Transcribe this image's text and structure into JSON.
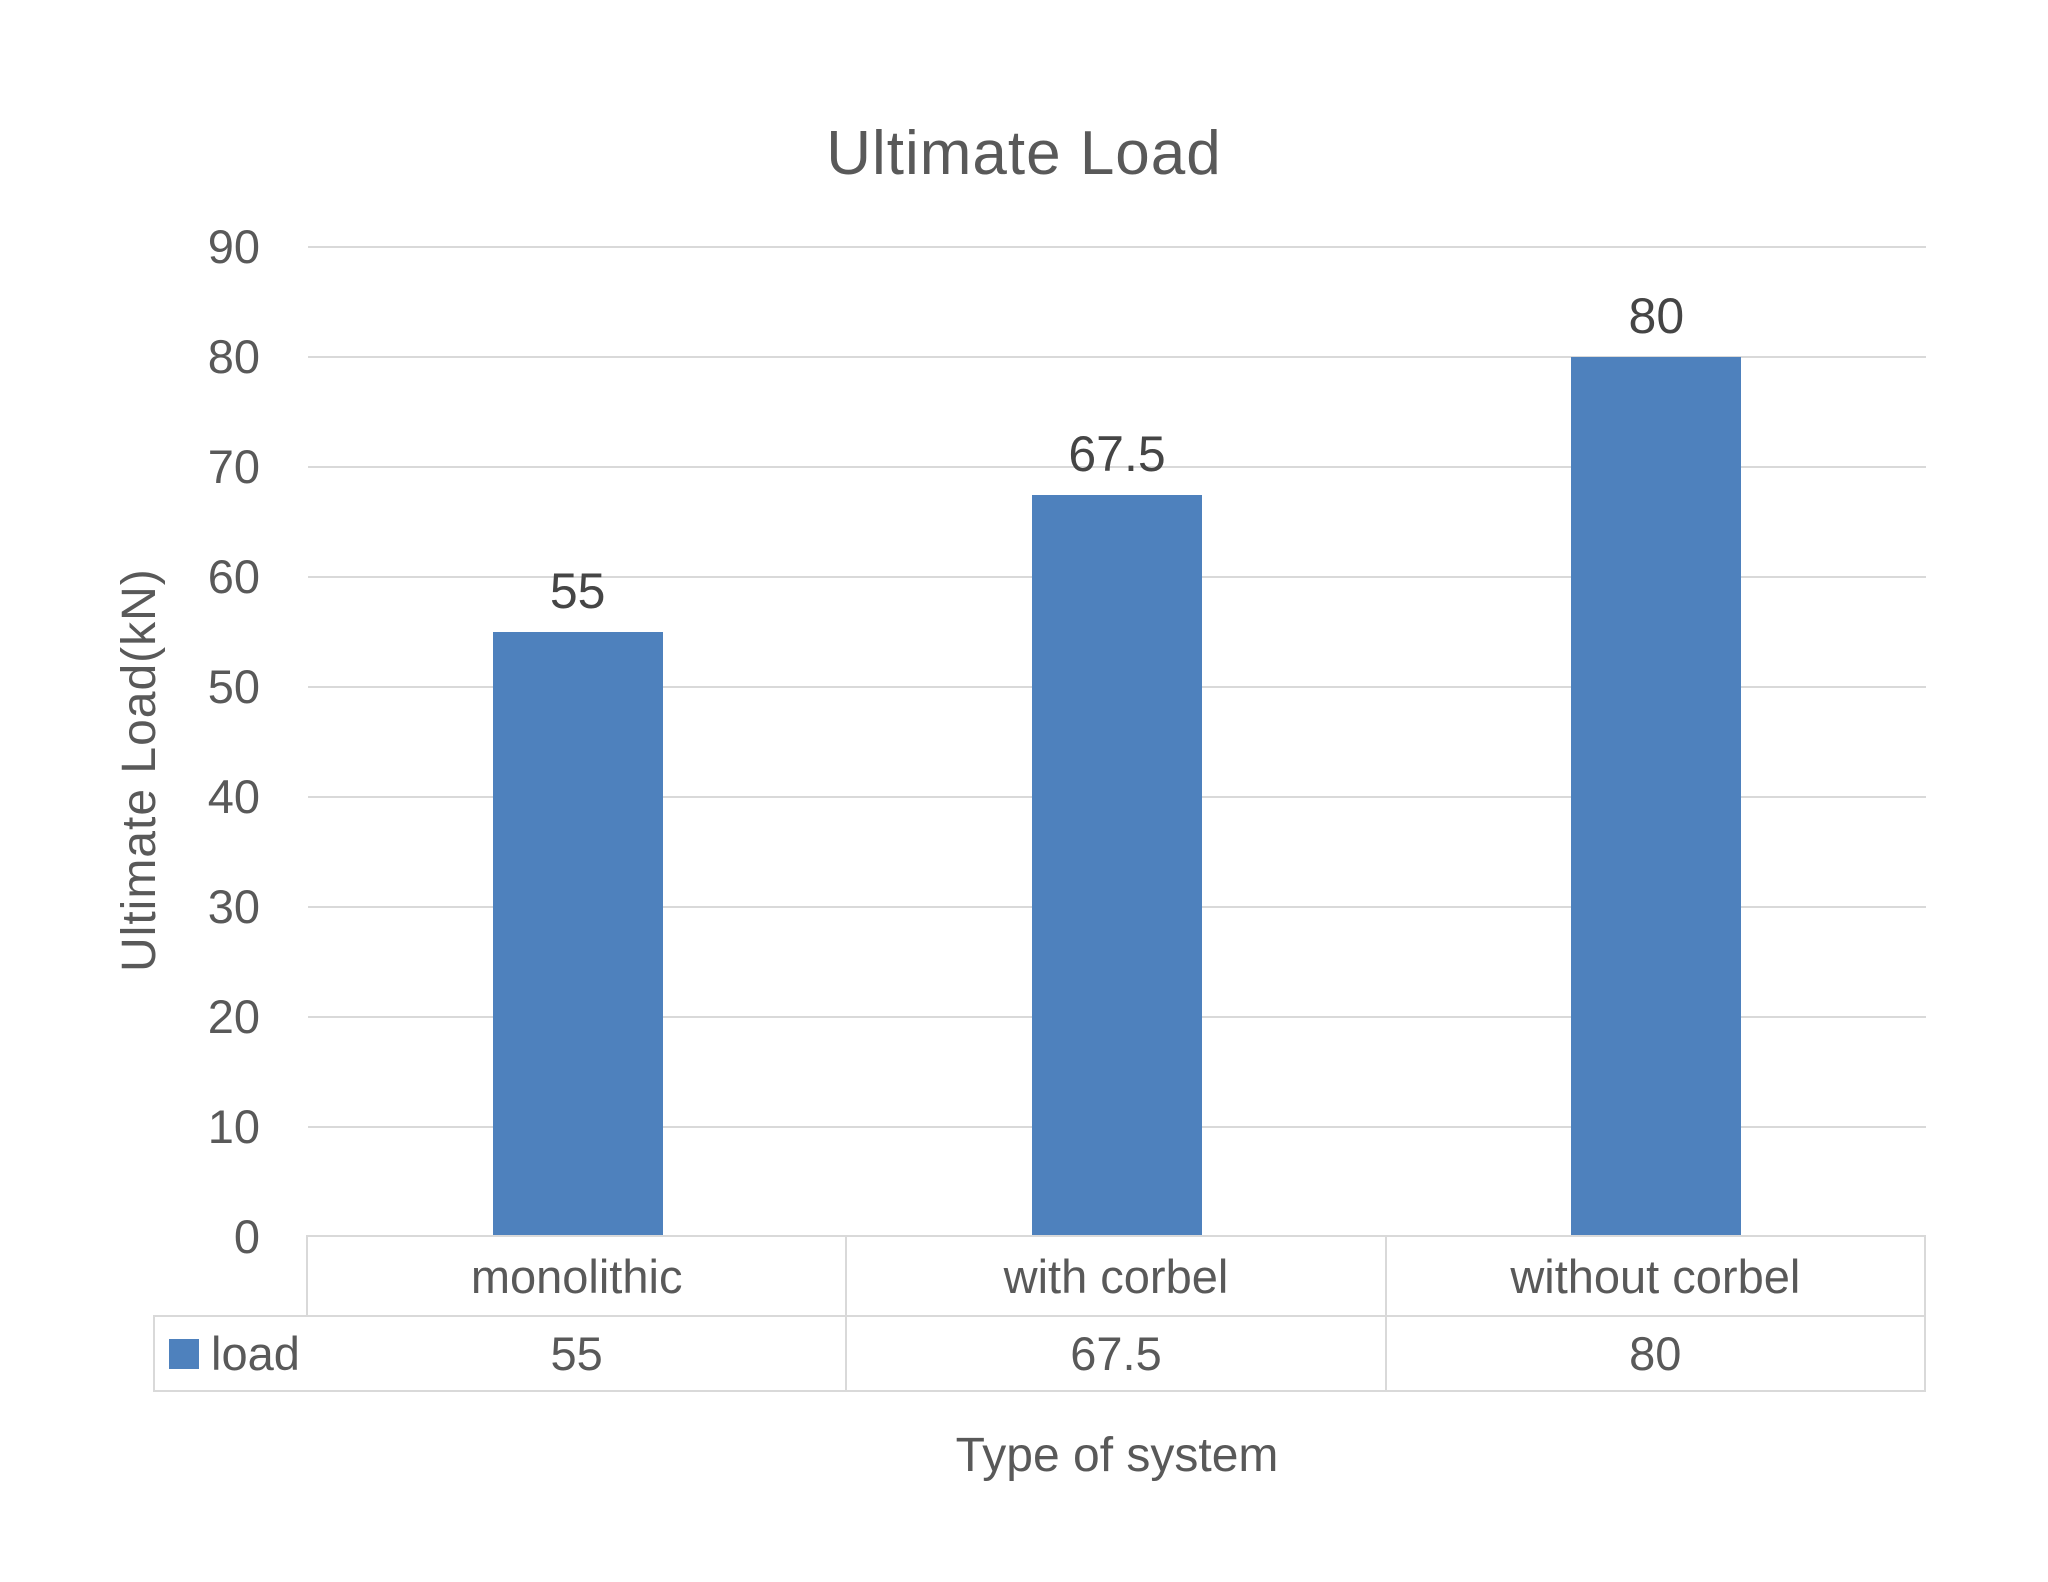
{
  "chart_data": {
    "type": "bar",
    "title": "Ultimate Load",
    "categories": [
      "monolithic",
      "with corbel",
      "without corbel"
    ],
    "series": [
      {
        "name": "load",
        "values": [
          55,
          67.5,
          80
        ]
      }
    ],
    "data_labels": [
      "55",
      "67.5",
      "80"
    ],
    "table_values": [
      "55",
      "67.5",
      "80"
    ],
    "xlabel": "Type of system",
    "ylabel": "Ultimate Load(kN)",
    "ylim": [
      0,
      90
    ],
    "yticks": [
      0,
      10,
      20,
      30,
      40,
      50,
      60,
      70,
      80,
      90
    ],
    "grid": true,
    "legend_position": "table-left",
    "bar_color": "#4e81bd",
    "gridline_color": "#d9d9d9",
    "text_color": "#595959"
  }
}
